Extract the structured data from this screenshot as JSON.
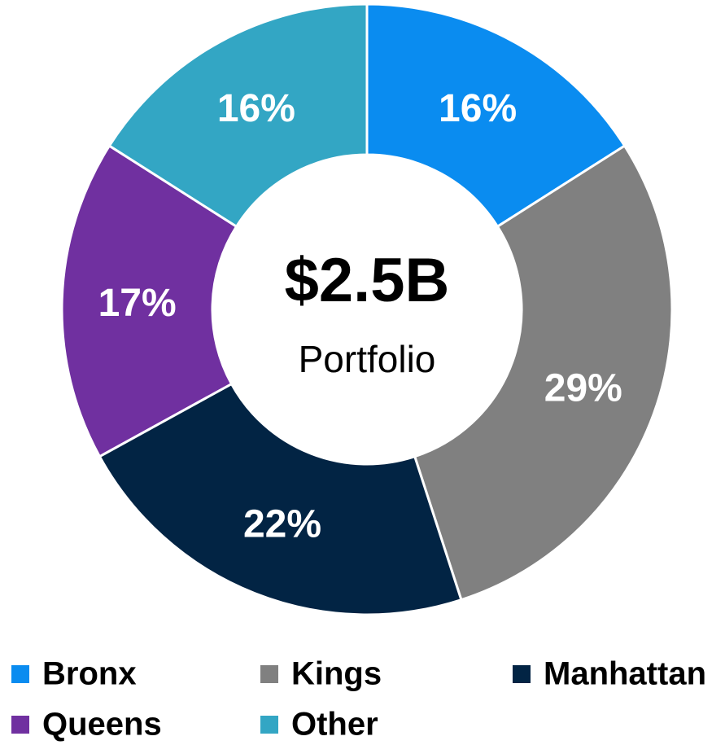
{
  "chart_data": {
    "type": "donut",
    "center_title": "$2.5B",
    "center_subtitle": "Portfolio",
    "categories": [
      "Bronx",
      "Kings",
      "Manhattan",
      "Queens",
      "Other"
    ],
    "values": [
      16,
      29,
      22,
      17,
      16
    ],
    "value_labels": [
      "16%",
      "29%",
      "22%",
      "17%",
      "16%"
    ],
    "colors": [
      "#0a8cf0",
      "#808080",
      "#022444",
      "#7030a0",
      "#33a6c4"
    ],
    "legend": "bottom"
  }
}
